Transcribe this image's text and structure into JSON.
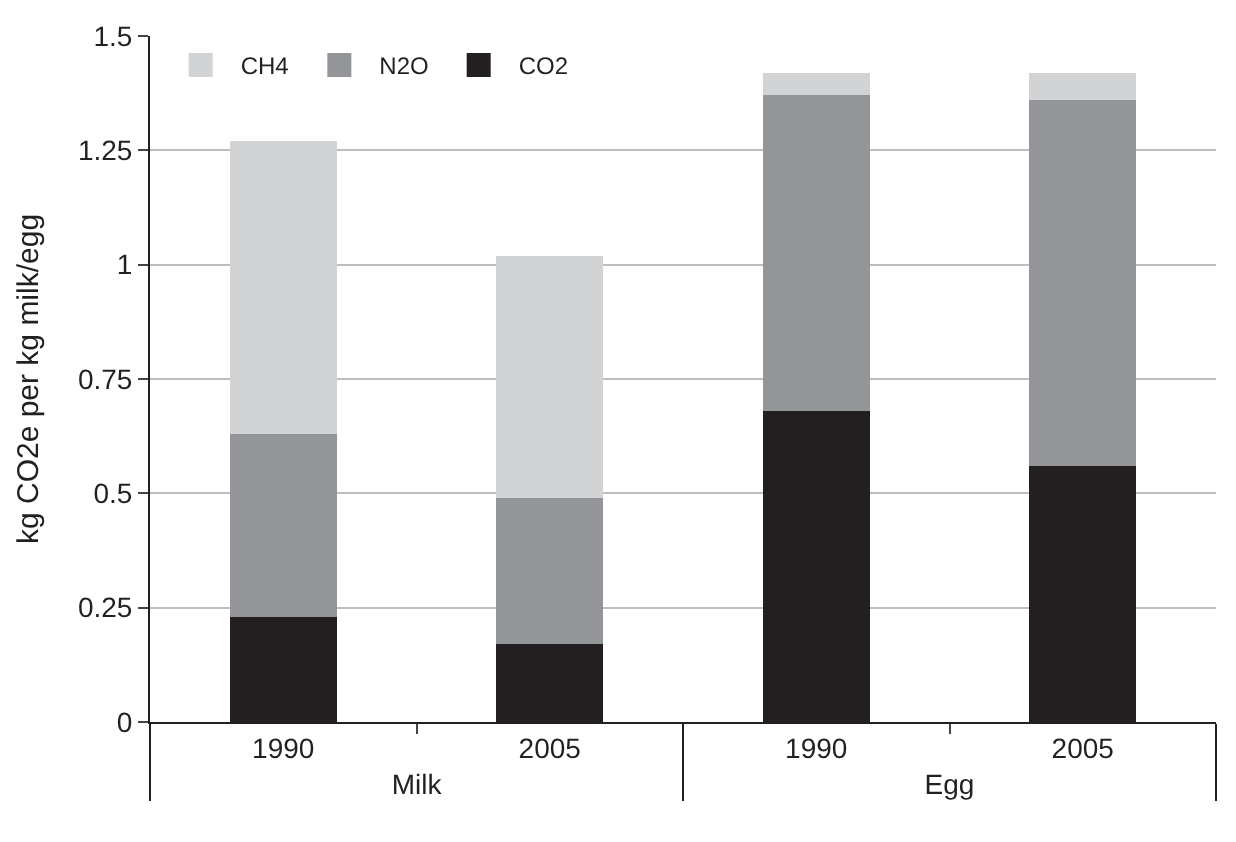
{
  "chart_data": {
    "type": "bar",
    "stacked": true,
    "ylabel": "kg CO2e per kg milk/egg",
    "categories": [
      "1990",
      "2005",
      "1990",
      "2005"
    ],
    "annotations": [
      "Milk",
      "Egg"
    ],
    "series": [
      {
        "name": "CO2",
        "color": "#231f20",
        "values": [
          0.23,
          0.17,
          0.68,
          0.56
        ]
      },
      {
        "name": "N2O",
        "color": "#939598",
        "values": [
          0.4,
          0.32,
          0.69,
          0.8
        ]
      },
      {
        "name": "CH4",
        "color": "#d1d3d4",
        "values": [
          0.64,
          0.53,
          0.05,
          0.06
        ]
      }
    ],
    "ylim": [
      0,
      1.5
    ],
    "yticks": [
      0,
      0.25,
      0.5,
      0.75,
      1,
      1.25,
      1.5
    ],
    "grid": "y",
    "legend": "top left"
  }
}
